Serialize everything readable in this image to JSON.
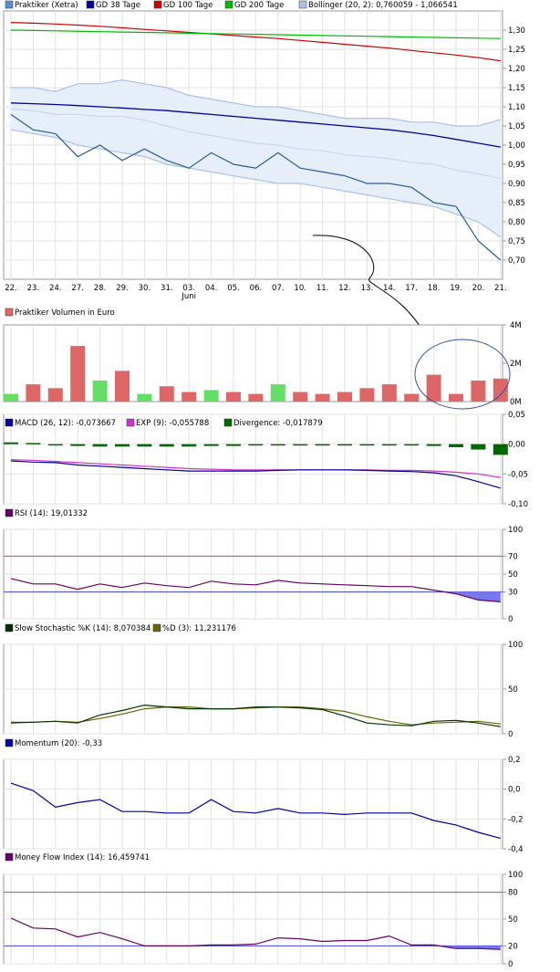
{
  "chart_data": [
    {
      "type": "line",
      "id": "price",
      "legend": [
        {
          "label": "Praktiker (Xetra)",
          "color": "#5a8fd0"
        },
        {
          "label": "GD 38 Tage",
          "color": "#000099"
        },
        {
          "label": "GD 100 Tage",
          "color": "#cc0000"
        },
        {
          "label": "GD 200 Tage",
          "color": "#00bb00"
        },
        {
          "label": "Bollinger (20, 2): 0,760059 - 1,066541",
          "color": "#a9c2e6"
        }
      ],
      "x": [
        "22.",
        "23.",
        "24.",
        "27.",
        "28.",
        "29.",
        "30.",
        "31.",
        "03.",
        "04.",
        "05.",
        "06.",
        "07.",
        "10.",
        "11.",
        "12.",
        "13.",
        "14.",
        "17.",
        "18.",
        "19.",
        "20.",
        "21."
      ],
      "x_sublabel": {
        "index": 8,
        "text": "Juni"
      },
      "ylim": [
        0.65,
        1.35
      ],
      "yticks": [
        0.7,
        0.75,
        0.8,
        0.85,
        0.9,
        0.95,
        1.0,
        1.05,
        1.1,
        1.15,
        1.2,
        1.25,
        1.3
      ],
      "ytick_labels": [
        "0,70",
        "0,75",
        "0,80",
        "0,85",
        "0,90",
        "0,95",
        "1,00",
        "1,05",
        "1,10",
        "1,15",
        "1,20",
        "1,25",
        "1,30"
      ],
      "series": [
        {
          "values": [
            1.08,
            1.04,
            1.03,
            0.97,
            1.0,
            0.96,
            0.99,
            0.96,
            0.94,
            0.98,
            0.95,
            0.94,
            0.98,
            0.94,
            0.93,
            0.92,
            0.9,
            0.9,
            0.89,
            0.85,
            0.84,
            0.75,
            0.7
          ]
        },
        {
          "values": [
            1.11,
            1.108,
            1.106,
            1.103,
            1.1,
            1.097,
            1.093,
            1.09,
            1.085,
            1.08,
            1.075,
            1.07,
            1.065,
            1.06,
            1.055,
            1.05,
            1.045,
            1.04,
            1.033,
            1.025,
            1.015,
            1.005,
            0.995
          ]
        },
        {
          "values": [
            1.32,
            1.318,
            1.316,
            1.313,
            1.31,
            1.306,
            1.302,
            1.298,
            1.294,
            1.29,
            1.286,
            1.282,
            1.278,
            1.273,
            1.268,
            1.263,
            1.258,
            1.253,
            1.247,
            1.241,
            1.235,
            1.228,
            1.22
          ]
        },
        {
          "values": [
            1.3,
            1.299,
            1.298,
            1.297,
            1.296,
            1.295,
            1.294,
            1.293,
            1.292,
            1.291,
            1.29,
            1.289,
            1.288,
            1.287,
            1.286,
            1.285,
            1.284,
            1.283,
            1.282,
            1.281,
            1.28,
            1.279,
            1.278
          ]
        },
        {
          "values": [
            1.15,
            1.15,
            1.14,
            1.16,
            1.16,
            1.17,
            1.16,
            1.15,
            1.13,
            1.12,
            1.11,
            1.1,
            1.1,
            1.09,
            1.08,
            1.07,
            1.07,
            1.07,
            1.06,
            1.06,
            1.05,
            1.05,
            1.067
          ]
        },
        {
          "values": [
            1.04,
            1.03,
            1.02,
            1.0,
            0.99,
            0.98,
            0.97,
            0.95,
            0.94,
            0.93,
            0.92,
            0.91,
            0.9,
            0.9,
            0.89,
            0.88,
            0.87,
            0.86,
            0.85,
            0.84,
            0.82,
            0.8,
            0.76
          ]
        },
        {
          "values": [
            1.095,
            1.09,
            1.08,
            1.08,
            1.075,
            1.075,
            1.065,
            1.05,
            1.035,
            1.025,
            1.015,
            1.005,
            1.0,
            0.99,
            0.985,
            0.975,
            0.97,
            0.965,
            0.955,
            0.95,
            0.935,
            0.925,
            0.913
          ]
        }
      ]
    },
    {
      "type": "bar",
      "id": "volume",
      "legend": [
        {
          "label": "Praktiker Volumen in Euro",
          "color": "#d96b6b"
        }
      ],
      "ylim": [
        0,
        4
      ],
      "yticks": [
        0,
        2,
        4
      ],
      "ytick_labels": [
        "0M",
        "2M",
        "4M"
      ],
      "values": [
        0.4,
        0.9,
        0.7,
        2.9,
        1.1,
        1.6,
        0.4,
        0.8,
        0.5,
        0.6,
        0.5,
        0.4,
        0.9,
        0.5,
        0.4,
        0.5,
        0.7,
        0.9,
        0.4,
        1.4,
        0.4,
        1.1,
        1.2
      ],
      "up": [
        true,
        false,
        false,
        false,
        true,
        false,
        true,
        false,
        false,
        true,
        false,
        false,
        true,
        false,
        false,
        false,
        false,
        false,
        false,
        false,
        false,
        false,
        false
      ],
      "colors": {
        "up": "#66dd66",
        "down": "#dd6666"
      }
    },
    {
      "type": "line",
      "id": "macd",
      "legend": [
        {
          "label": "MACD (26, 12): -0,073667",
          "color": "#000099"
        },
        {
          "label": "EXP (9): -0,055788",
          "color": "#cc33cc"
        },
        {
          "label": "Divergence: -0,017879",
          "color": "#006600"
        }
      ],
      "ylim": [
        -0.1,
        0.05
      ],
      "yticks": [
        -0.1,
        -0.05,
        0.0,
        0.05
      ],
      "ytick_labels": [
        "-0,10",
        "-0,05",
        "0,00",
        "0,05"
      ],
      "series": [
        {
          "values": [
            -0.028,
            -0.03,
            -0.031,
            -0.035,
            -0.037,
            -0.039,
            -0.041,
            -0.043,
            -0.045,
            -0.045,
            -0.045,
            -0.045,
            -0.044,
            -0.043,
            -0.043,
            -0.043,
            -0.044,
            -0.045,
            -0.046,
            -0.048,
            -0.053,
            -0.063,
            -0.0737
          ]
        },
        {
          "values": [
            -0.026,
            -0.027,
            -0.029,
            -0.031,
            -0.033,
            -0.035,
            -0.037,
            -0.039,
            -0.041,
            -0.042,
            -0.043,
            -0.043,
            -0.043,
            -0.043,
            -0.043,
            -0.043,
            -0.043,
            -0.044,
            -0.044,
            -0.045,
            -0.047,
            -0.05,
            -0.0558
          ]
        },
        {
          "values": [
            0.003,
            0.002,
            -0.001,
            -0.003,
            -0.004,
            -0.004,
            -0.004,
            -0.004,
            -0.004,
            -0.003,
            -0.003,
            -0.002,
            -0.002,
            -0.001,
            -0.001,
            -0.001,
            -0.001,
            -0.001,
            -0.002,
            -0.003,
            -0.005,
            -0.009,
            -0.0179
          ]
        }
      ]
    },
    {
      "type": "line",
      "id": "rsi",
      "legend": [
        {
          "label": "RSI (14): 19,01332",
          "color": "#660066"
        }
      ],
      "ylim": [
        0,
        100
      ],
      "yticks": [
        0,
        30,
        50,
        70,
        100
      ],
      "ytick_labels": [
        "0",
        "30",
        "50",
        "70",
        "100"
      ],
      "ytick_colors": {
        "30": "#cc0000",
        "70": "#cc0000"
      },
      "lines": {
        "upper": 70,
        "lower": 30
      },
      "series": [
        {
          "values": [
            45,
            39,
            39,
            33,
            39,
            35,
            40,
            37,
            35,
            42,
            39,
            38,
            43,
            40,
            39,
            38,
            37,
            36,
            36,
            32,
            28,
            21,
            19
          ]
        }
      ]
    },
    {
      "type": "line",
      "id": "stochastic",
      "legend": [
        {
          "label": "Slow Stochastic %K (14): 8,070384",
          "color": "#003300"
        },
        {
          "label": "%D (3): 11,231176",
          "color": "#666600"
        }
      ],
      "ylim": [
        0,
        100
      ],
      "yticks": [
        0,
        50,
        100
      ],
      "ytick_labels": [
        "0",
        "50",
        "100"
      ],
      "series": [
        {
          "values": [
            12,
            13,
            14,
            12,
            21,
            26,
            32,
            30,
            28,
            28,
            28,
            30,
            30,
            29,
            27,
            20,
            12,
            10,
            9,
            14,
            15,
            12,
            8
          ]
        },
        {
          "values": [
            13,
            13,
            14,
            13,
            17,
            22,
            28,
            30,
            30,
            28,
            28,
            29,
            30,
            30,
            28,
            25,
            19,
            14,
            10,
            12,
            13,
            14,
            11
          ]
        }
      ]
    },
    {
      "type": "line",
      "id": "momentum",
      "legend": [
        {
          "label": "Momentum (20): -0,33",
          "color": "#000099"
        }
      ],
      "ylim": [
        -0.4,
        0.2
      ],
      "yticks": [
        -0.4,
        -0.2,
        0.0,
        0.2
      ],
      "ytick_labels": [
        "-0,4",
        "-0,2",
        "0,0",
        "0,2"
      ],
      "series": [
        {
          "values": [
            0.04,
            -0.01,
            -0.12,
            -0.09,
            -0.07,
            -0.15,
            -0.15,
            -0.16,
            -0.16,
            -0.07,
            -0.15,
            -0.16,
            -0.13,
            -0.16,
            -0.16,
            -0.17,
            -0.16,
            -0.16,
            -0.16,
            -0.21,
            -0.24,
            -0.29,
            -0.33
          ]
        }
      ]
    },
    {
      "type": "line",
      "id": "mfi",
      "legend": [
        {
          "label": "Money Flow Index (14): 16,459741",
          "color": "#660066"
        }
      ],
      "ylim": [
        0,
        100
      ],
      "yticks": [
        0,
        20,
        50,
        80,
        100
      ],
      "ytick_labels": [
        "0",
        "20",
        "50",
        "80",
        "100"
      ],
      "ytick_colors": {
        "20": "#cc0000",
        "80": "#cc0000"
      },
      "lines": {
        "upper": 80,
        "lower": 20
      },
      "series": [
        {
          "values": [
            51,
            40,
            39,
            30,
            35,
            28,
            20,
            20,
            20,
            21,
            21,
            22,
            29,
            28,
            25,
            26,
            26,
            31,
            21,
            21,
            17,
            17,
            16
          ]
        }
      ]
    }
  ]
}
